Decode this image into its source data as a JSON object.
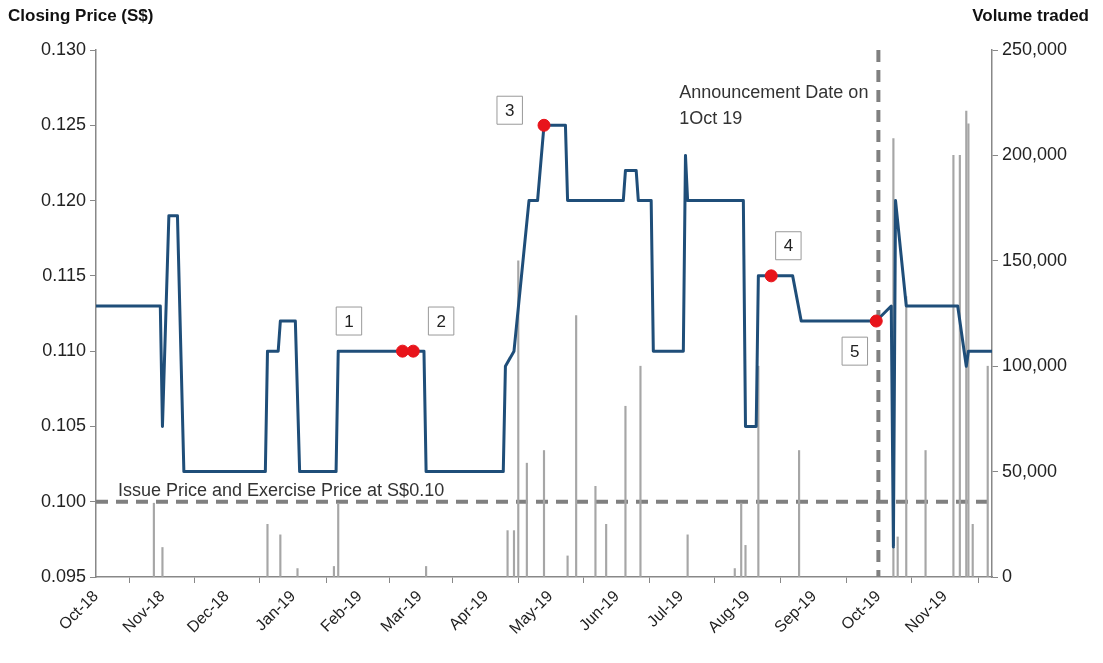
{
  "chart_data": {
    "type": "line",
    "ylabel": "Closing Price (S$)",
    "y2label": "Volume traded",
    "xlim": [
      "2018-10-01",
      "2019-11-23"
    ],
    "xticks": [
      {
        "value": "2018-10-01",
        "label": "Oct-18"
      },
      {
        "value": "2018-11-01",
        "label": "Nov-18"
      },
      {
        "value": "2018-12-01",
        "label": "Dec-18"
      },
      {
        "value": "2019-01-01",
        "label": "Jan-19"
      },
      {
        "value": "2019-02-01",
        "label": "Feb-19"
      },
      {
        "value": "2019-03-01",
        "label": "Mar-19"
      },
      {
        "value": "2019-04-01",
        "label": "Apr-19"
      },
      {
        "value": "2019-05-01",
        "label": "May-19"
      },
      {
        "value": "2019-06-01",
        "label": "Jun-19"
      },
      {
        "value": "2019-07-01",
        "label": "Jul-19"
      },
      {
        "value": "2019-08-01",
        "label": "Aug-19"
      },
      {
        "value": "2019-09-01",
        "label": "Sep-19"
      },
      {
        "value": "2019-10-01",
        "label": "Oct-19"
      },
      {
        "value": "2019-11-01",
        "label": "Nov-19"
      }
    ],
    "ylim": [
      0.095,
      0.13
    ],
    "yticks": [
      {
        "value": 0.095,
        "label": "0.095"
      },
      {
        "value": 0.1,
        "label": "0.100"
      },
      {
        "value": 0.105,
        "label": "0.105"
      },
      {
        "value": 0.11,
        "label": "0.110"
      },
      {
        "value": 0.115,
        "label": "0.115"
      },
      {
        "value": 0.12,
        "label": "0.120"
      },
      {
        "value": 0.125,
        "label": "0.125"
      },
      {
        "value": 0.13,
        "label": "0.130"
      }
    ],
    "y2lim": [
      0,
      250000
    ],
    "y2ticks": [
      {
        "value": 0,
        "label": "0"
      },
      {
        "value": 50000,
        "label": "50,000"
      },
      {
        "value": 100000,
        "label": "100,000"
      },
      {
        "value": 150000,
        "label": "150,000"
      },
      {
        "value": 200000,
        "label": "200,000"
      },
      {
        "value": 250000,
        "label": "250,000"
      }
    ],
    "grid": false,
    "legend": false,
    "series": [
      {
        "type": "bar",
        "axis": "y2",
        "color": "#a6a6a6",
        "x": [
          "2018-10-28",
          "2018-11-01",
          "2018-12-20",
          "2018-12-26",
          "2019-01-03",
          "2019-01-20",
          "2019-01-22",
          "2019-03-04",
          "2019-04-11",
          "2019-04-14",
          "2019-04-16",
          "2019-04-20",
          "2019-04-28",
          "2019-05-09",
          "2019-05-13",
          "2019-05-22",
          "2019-05-27",
          "2019-06-05",
          "2019-06-12",
          "2019-07-04",
          "2019-07-26",
          "2019-07-29",
          "2019-07-31",
          "2019-08-06",
          "2019-08-25",
          "2019-10-08",
          "2019-10-10",
          "2019-10-14",
          "2019-10-23",
          "2019-11-05",
          "2019-11-08",
          "2019-11-11",
          "2019-11-12",
          "2019-11-14",
          "2019-11-21"
        ],
        "values": [
          35000,
          14000,
          25000,
          20000,
          4000,
          5000,
          35000,
          5000,
          22000,
          22000,
          150000,
          54000,
          60000,
          10000,
          124000,
          43000,
          25000,
          81000,
          100000,
          20000,
          4000,
          35000,
          15000,
          100000,
          60000,
          208000,
          19000,
          133000,
          60000,
          200000,
          200000,
          221000,
          215000,
          25000,
          100000
        ]
      },
      {
        "color": "#1f4e79",
        "marker": "none",
        "x": [
          "2018-10-01",
          "2018-10-31",
          "2018-11-01",
          "2018-11-04",
          "2018-11-08",
          "2018-11-11",
          "2018-12-19",
          "2018-12-20",
          "2018-12-25",
          "2018-12-26",
          "2019-01-02",
          "2019-01-04",
          "2019-01-21",
          "2019-01-22",
          "2019-03-03",
          "2019-03-04",
          "2019-04-09",
          "2019-04-10",
          "2019-04-14",
          "2019-04-21",
          "2019-04-25",
          "2019-04-28",
          "2019-05-08",
          "2019-05-09",
          "2019-06-04",
          "2019-06-05",
          "2019-06-10",
          "2019-06-11",
          "2019-06-17",
          "2019-06-18",
          "2019-07-02",
          "2019-07-03",
          "2019-07-04",
          "2019-07-30",
          "2019-07-31",
          "2019-08-05",
          "2019-08-06",
          "2019-08-22",
          "2019-08-26",
          "2019-09-30",
          "2019-10-07",
          "2019-10-08",
          "2019-10-09",
          "2019-10-14",
          "2019-11-07",
          "2019-11-11",
          "2019-11-12",
          "2019-11-23"
        ],
        "values": [
          0.113,
          0.113,
          0.105,
          0.119,
          0.119,
          0.102,
          0.102,
          0.11,
          0.11,
          0.112,
          0.112,
          0.102,
          0.102,
          0.11,
          0.11,
          0.102,
          0.102,
          0.109,
          0.11,
          0.12,
          0.12,
          0.125,
          0.125,
          0.12,
          0.12,
          0.122,
          0.122,
          0.12,
          0.12,
          0.11,
          0.11,
          0.123,
          0.12,
          0.12,
          0.105,
          0.105,
          0.115,
          0.115,
          0.112,
          0.112,
          0.113,
          0.097,
          0.12,
          0.113,
          0.113,
          0.109,
          0.11,
          0.11
        ]
      },
      {
        "type": "scatter",
        "color": "#e8141b",
        "marker": "circle",
        "x": [
          "2019-02-21",
          "2019-02-26",
          "2019-04-28",
          "2019-08-12",
          "2019-09-30"
        ],
        "values": [
          0.11,
          0.11,
          0.125,
          0.115,
          0.112
        ]
      }
    ],
    "ref_lines": [
      {
        "axis": "y",
        "value": 0.1,
        "label": "Issue Price and Exercise Price at S$0.10",
        "color": "#808080",
        "line_style": "dashed"
      },
      {
        "axis": "x",
        "value": "2019-10-01",
        "label": "Announcement Date on 1Oct 19",
        "color": "#808080",
        "line_style": "dashed"
      }
    ],
    "annotations": [
      {
        "text": "1",
        "x": "2019-01-27",
        "y": 0.112
      },
      {
        "text": "2",
        "x": "2019-03-11",
        "y": 0.112
      },
      {
        "text": "3",
        "x": "2019-04-12",
        "y": 0.126
      },
      {
        "text": "4",
        "x": "2019-08-20",
        "y": 0.117
      },
      {
        "text": "5",
        "x": "2019-09-20",
        "y": 0.11
      }
    ]
  }
}
